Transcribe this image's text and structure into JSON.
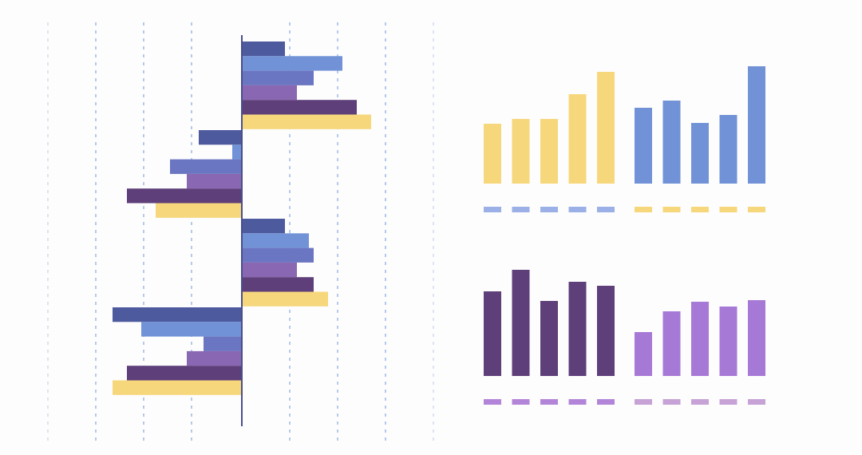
{
  "colors": {
    "background": "#fdfdfd",
    "navy": "#4e5a9e",
    "blue": "#7192d6",
    "periwinkle": "#6b76c2",
    "violet": "#8a67b2",
    "plum": "#5e3f7a",
    "yellow": "#f7d77c",
    "lavender": "#a779d6",
    "axis": "#4a4f8a",
    "grid": "#8fb0e0",
    "legend_blue": "#9bb0e6",
    "legend_purple": "#b385d8",
    "legend_lilac": "#c7a2d6"
  },
  "chart_data": [
    {
      "type": "bar",
      "orientation": "horizontal",
      "grouped": true,
      "groups": 4,
      "grid": true,
      "xlim": [
        -2.7,
        4
      ],
      "groups_values": [
        [
          0.9,
          2.1,
          1.5,
          1.15,
          2.4,
          2.7
        ],
        [
          -0.9,
          -0.2,
          -1.5,
          -1.15,
          -2.4,
          -1.8
        ],
        [
          0.9,
          1.4,
          1.5,
          1.15,
          1.5,
          1.8
        ],
        [
          -2.7,
          -2.1,
          -0.8,
          -1.15,
          -2.4,
          -2.7
        ]
      ],
      "series_colors": [
        "navy",
        "blue",
        "periwinkle",
        "violet",
        "plum",
        "yellow"
      ]
    },
    {
      "type": "bar",
      "grid": false,
      "series": [
        {
          "color": "yellow",
          "values": [
            75,
            81,
            81,
            112,
            140
          ]
        },
        {
          "color": "blue",
          "values": [
            95,
            104,
            76,
            86,
            147
          ]
        }
      ],
      "legend_colors": [
        "legend_blue",
        "yellow"
      ]
    },
    {
      "type": "bar",
      "grid": false,
      "series": [
        {
          "color": "plum",
          "values": [
            106,
            133,
            94,
            118,
            113
          ]
        },
        {
          "color": "lavender",
          "values": [
            55,
            81,
            93,
            87,
            95
          ]
        }
      ],
      "legend_colors": [
        "legend_purple",
        "legend_lilac"
      ]
    }
  ]
}
